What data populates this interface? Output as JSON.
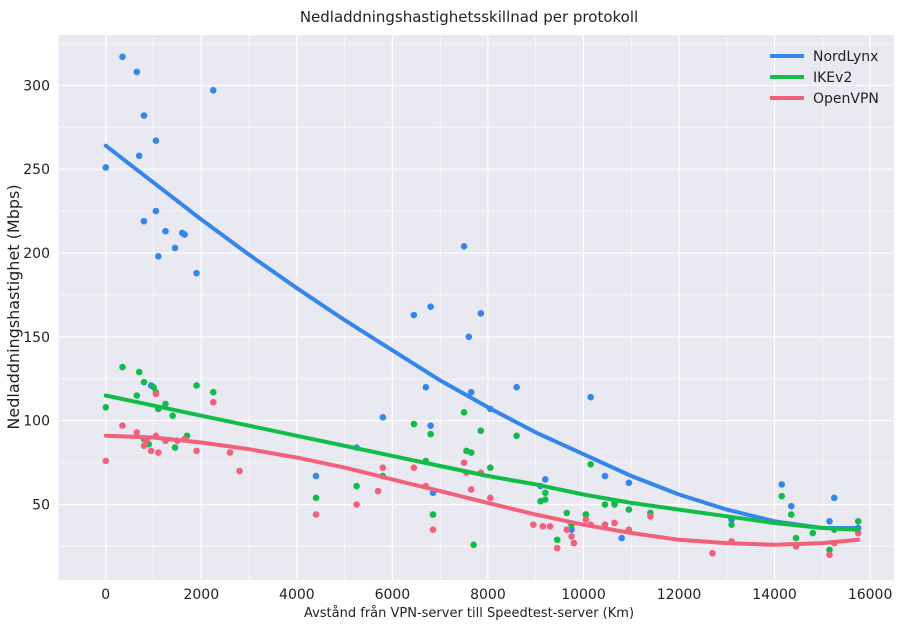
{
  "chart_data": {
    "type": "scatter",
    "title": "Nedladdningshastighetsskillnad per protokoll",
    "xlabel": "Avstånd från VPN-server till Speedtest-server (Km)",
    "ylabel": "Nedladdningshastighet (Mbps)",
    "xlim": [
      -1000,
      16500
    ],
    "ylim": [
      5,
      330
    ],
    "x_ticks": [
      0,
      2000,
      4000,
      6000,
      8000,
      10000,
      12000,
      14000,
      16000
    ],
    "y_ticks": [
      50,
      100,
      150,
      200,
      250,
      300
    ],
    "grid": true,
    "background": "#e9e9f2",
    "legend_position": "top-right",
    "series": [
      {
        "name": "NordLynx",
        "color": "#3586ec",
        "points": [
          [
            0,
            251
          ],
          [
            350,
            317
          ],
          [
            650,
            308
          ],
          [
            700,
            258
          ],
          [
            800,
            282
          ],
          [
            800,
            219
          ],
          [
            1050,
            267
          ],
          [
            1050,
            225
          ],
          [
            1100,
            198
          ],
          [
            1250,
            213
          ],
          [
            1450,
            203
          ],
          [
            1600,
            212
          ],
          [
            1650,
            211
          ],
          [
            1900,
            188
          ],
          [
            2250,
            297
          ],
          [
            950,
            121
          ],
          [
            4400,
            67
          ],
          [
            5250,
            84
          ],
          [
            5800,
            102
          ],
          [
            6450,
            163
          ],
          [
            6700,
            120
          ],
          [
            6800,
            168
          ],
          [
            6800,
            97
          ],
          [
            6850,
            57
          ],
          [
            7500,
            204
          ],
          [
            7600,
            150
          ],
          [
            7650,
            117
          ],
          [
            7850,
            164
          ],
          [
            8050,
            107
          ],
          [
            8600,
            120
          ],
          [
            9100,
            61
          ],
          [
            9200,
            65
          ],
          [
            9750,
            35
          ],
          [
            10050,
            44
          ],
          [
            10150,
            114
          ],
          [
            10450,
            67
          ],
          [
            10650,
            51
          ],
          [
            10800,
            30
          ],
          [
            10950,
            63
          ],
          [
            13100,
            41
          ],
          [
            14150,
            62
          ],
          [
            14350,
            49
          ],
          [
            15150,
            40
          ],
          [
            15250,
            54
          ],
          [
            15750,
            36
          ]
        ],
        "trend": [
          [
            0,
            264
          ],
          [
            1000,
            242
          ],
          [
            2000,
            220
          ],
          [
            3000,
            199
          ],
          [
            4000,
            179
          ],
          [
            5000,
            160
          ],
          [
            6000,
            142
          ],
          [
            7000,
            124
          ],
          [
            8000,
            108
          ],
          [
            9000,
            93
          ],
          [
            10000,
            80
          ],
          [
            11000,
            67
          ],
          [
            12000,
            56
          ],
          [
            13000,
            47
          ],
          [
            14000,
            40
          ],
          [
            15000,
            36
          ],
          [
            15750,
            36
          ]
        ]
      },
      {
        "name": "IKEv2",
        "color": "#10bd48",
        "points": [
          [
            0,
            108
          ],
          [
            350,
            132
          ],
          [
            650,
            115
          ],
          [
            700,
            129
          ],
          [
            800,
            123
          ],
          [
            800,
            89
          ],
          [
            900,
            86
          ],
          [
            1000,
            120
          ],
          [
            1050,
            117
          ],
          [
            1100,
            107
          ],
          [
            1250,
            110
          ],
          [
            1400,
            103
          ],
          [
            1450,
            84
          ],
          [
            1700,
            91
          ],
          [
            1900,
            121
          ],
          [
            2250,
            117
          ],
          [
            4400,
            54
          ],
          [
            5250,
            61
          ],
          [
            5800,
            67
          ],
          [
            6450,
            98
          ],
          [
            6700,
            76
          ],
          [
            6800,
            92
          ],
          [
            6850,
            44
          ],
          [
            7500,
            105
          ],
          [
            7550,
            82
          ],
          [
            7650,
            81
          ],
          [
            7700,
            26
          ],
          [
            7850,
            94
          ],
          [
            8050,
            72
          ],
          [
            8600,
            91
          ],
          [
            9100,
            52
          ],
          [
            9200,
            57
          ],
          [
            9200,
            53
          ],
          [
            9450,
            29
          ],
          [
            9650,
            45
          ],
          [
            9750,
            38
          ],
          [
            10050,
            44
          ],
          [
            10150,
            74
          ],
          [
            10450,
            50
          ],
          [
            10650,
            50
          ],
          [
            10950,
            47
          ],
          [
            11400,
            45
          ],
          [
            13100,
            38
          ],
          [
            14150,
            55
          ],
          [
            14350,
            44
          ],
          [
            14450,
            30
          ],
          [
            14800,
            33
          ],
          [
            15150,
            23
          ],
          [
            15250,
            35
          ],
          [
            15750,
            40
          ]
        ],
        "trend": [
          [
            0,
            115
          ],
          [
            1000,
            109
          ],
          [
            2000,
            103
          ],
          [
            3000,
            97
          ],
          [
            4000,
            91
          ],
          [
            5000,
            85
          ],
          [
            6000,
            79
          ],
          [
            7000,
            73
          ],
          [
            8000,
            67
          ],
          [
            9000,
            62
          ],
          [
            10000,
            56
          ],
          [
            11000,
            51
          ],
          [
            12000,
            47
          ],
          [
            13000,
            43
          ],
          [
            14000,
            39
          ],
          [
            15000,
            36
          ],
          [
            15750,
            35
          ]
        ]
      },
      {
        "name": "OpenVPN",
        "color": "#f2607a",
        "points": [
          [
            0,
            76
          ],
          [
            350,
            97
          ],
          [
            650,
            93
          ],
          [
            800,
            85
          ],
          [
            850,
            88
          ],
          [
            950,
            82
          ],
          [
            1050,
            91
          ],
          [
            1050,
            116
          ],
          [
            1100,
            81
          ],
          [
            1250,
            88
          ],
          [
            1500,
            88
          ],
          [
            1650,
            89
          ],
          [
            1900,
            82
          ],
          [
            2250,
            111
          ],
          [
            2600,
            81
          ],
          [
            2800,
            70
          ],
          [
            4400,
            44
          ],
          [
            5250,
            50
          ],
          [
            5700,
            58
          ],
          [
            5800,
            72
          ],
          [
            6450,
            72
          ],
          [
            6700,
            61
          ],
          [
            6850,
            35
          ],
          [
            7500,
            75
          ],
          [
            7550,
            69
          ],
          [
            7650,
            59
          ],
          [
            7850,
            69
          ],
          [
            8050,
            54
          ],
          [
            8950,
            38
          ],
          [
            9150,
            37
          ],
          [
            9300,
            37
          ],
          [
            9450,
            24
          ],
          [
            9650,
            35
          ],
          [
            9750,
            31
          ],
          [
            9800,
            27
          ],
          [
            10050,
            41
          ],
          [
            10150,
            38
          ],
          [
            10450,
            38
          ],
          [
            10650,
            39
          ],
          [
            10950,
            35
          ],
          [
            11400,
            43
          ],
          [
            12700,
            21
          ],
          [
            13100,
            28
          ],
          [
            14450,
            25
          ],
          [
            15150,
            20
          ],
          [
            15250,
            27
          ],
          [
            15750,
            33
          ]
        ],
        "trend": [
          [
            0,
            91
          ],
          [
            1000,
            90
          ],
          [
            2000,
            87
          ],
          [
            3000,
            83
          ],
          [
            4000,
            78
          ],
          [
            5000,
            72
          ],
          [
            6000,
            65
          ],
          [
            7000,
            58
          ],
          [
            8000,
            51
          ],
          [
            9000,
            44
          ],
          [
            10000,
            38
          ],
          [
            11000,
            33
          ],
          [
            12000,
            29
          ],
          [
            13000,
            27
          ],
          [
            14000,
            26
          ],
          [
            15000,
            27
          ],
          [
            15750,
            29
          ]
        ]
      }
    ]
  }
}
